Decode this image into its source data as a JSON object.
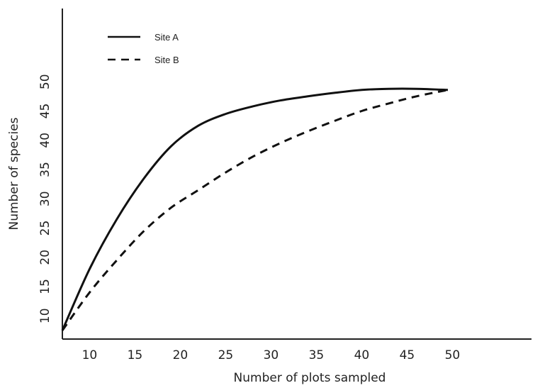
{
  "chart_data": {
    "type": "line",
    "title": "",
    "xlabel": "Number of plots sampled",
    "ylabel": "Number of species",
    "xlim": [
      7,
      51
    ],
    "ylim": [
      7,
      54
    ],
    "xticks": [
      "10",
      "15",
      "20",
      "25",
      "30",
      "35",
      "40",
      "45",
      "50"
    ],
    "yticks": [
      "10",
      "15",
      "20",
      "25",
      "30",
      "35",
      "40",
      "45",
      "50"
    ],
    "grid": false,
    "legend_position": "top-left",
    "series": [
      {
        "name": "Site A",
        "style": "solid",
        "x": [
          7,
          10,
          13,
          16,
          19,
          22,
          25,
          28,
          31,
          34,
          37,
          40,
          43,
          46,
          49.5
        ],
        "y": [
          7.5,
          18,
          26.5,
          33.5,
          39,
          42.5,
          44.5,
          45.8,
          46.8,
          47.5,
          48.1,
          48.6,
          48.8,
          48.8,
          48.6
        ]
      },
      {
        "name": "Site B",
        "style": "dashed",
        "x": [
          7,
          10,
          13,
          16,
          19,
          22,
          25,
          28,
          31,
          34,
          37,
          40,
          43,
          46,
          49.5
        ],
        "y": [
          7.5,
          14,
          19.5,
          24.5,
          28.5,
          31.5,
          34.5,
          37.2,
          39.5,
          41.5,
          43.3,
          45,
          46.3,
          47.5,
          48.6
        ]
      }
    ]
  }
}
